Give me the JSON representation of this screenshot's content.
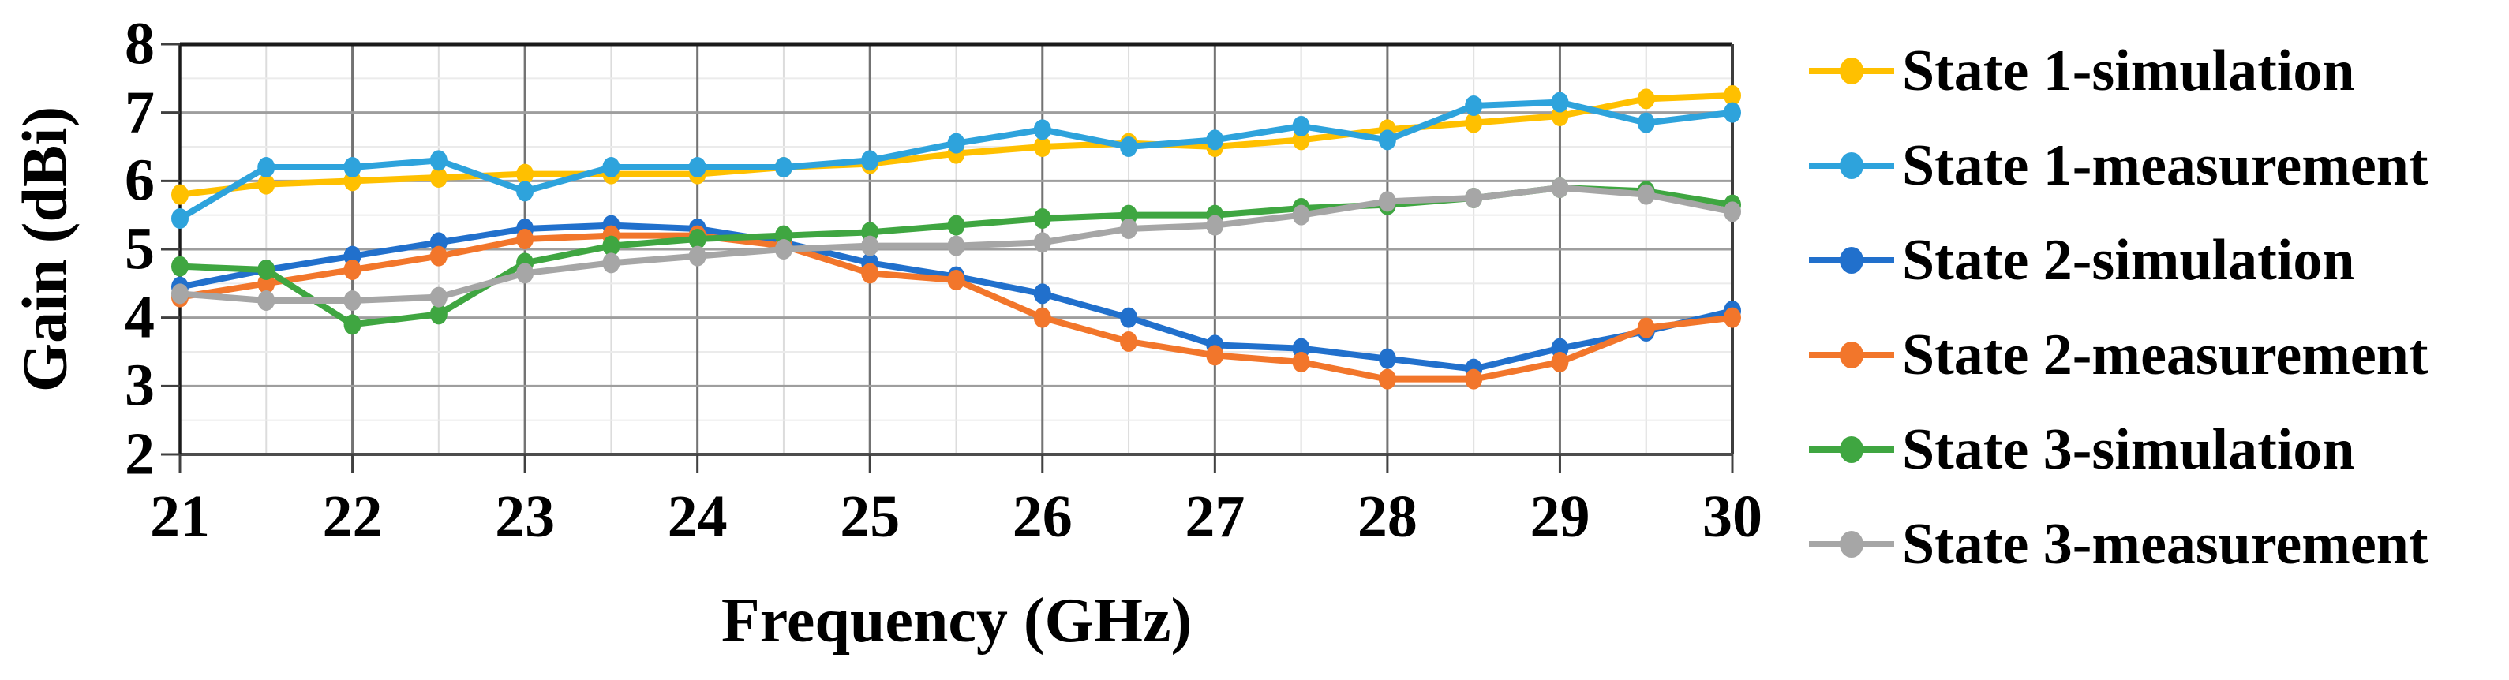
{
  "axes": {
    "x": {
      "title": "Frequency (GHz)",
      "min": 21,
      "max": 30,
      "minor_step": 0.5,
      "tick_labels": [
        "21",
        "22",
        "23",
        "24",
        "25",
        "26",
        "27",
        "28",
        "29",
        "30"
      ]
    },
    "y": {
      "title": "Gain (dBi)",
      "min": 2,
      "max": 8,
      "minor_step": 0.5,
      "tick_labels": [
        "8",
        "7",
        "6",
        "5",
        "4",
        "3",
        "2"
      ]
    }
  },
  "grid": {
    "major_horizontal_color": "#9e9e9e",
    "major_vertical_color": "#737373",
    "minor_horizontal_color": "#ebebeb",
    "minor_vertical_color": "#dcdcdc",
    "frame_top_color": "#1a1a1a",
    "frame_bottom_color": "#4d4d4d",
    "frame_left_color": "#1a1a1a",
    "frame_right_color": "#3d3d3d",
    "tick_color": "#404040"
  },
  "legend": {
    "position": "right"
  },
  "chart_data": {
    "type": "line",
    "title": "",
    "xlabel": "Frequency (GHz)",
    "ylabel": "Gain (dBi)",
    "xlim": [
      21,
      30
    ],
    "ylim": [
      2,
      8
    ],
    "grid": "on",
    "legend_position": "right",
    "x": [
      21,
      21.5,
      22,
      22.5,
      23,
      23.5,
      24,
      24.5,
      25,
      25.5,
      26,
      26.5,
      27,
      27.5,
      28,
      28.5,
      29,
      29.5,
      30
    ],
    "series": [
      {
        "name": "State 1-simulation",
        "color": "#FFC000",
        "values": [
          5.8,
          5.95,
          6.0,
          6.05,
          6.1,
          6.1,
          6.1,
          6.2,
          6.25,
          6.4,
          6.5,
          6.55,
          6.5,
          6.6,
          6.75,
          6.85,
          6.95,
          7.2,
          7.25
        ]
      },
      {
        "name": "State 1-measurement",
        "color": "#2EA3DC",
        "values": [
          5.45,
          6.2,
          6.2,
          6.3,
          5.85,
          6.2,
          6.2,
          6.2,
          6.3,
          6.55,
          6.75,
          6.5,
          6.6,
          6.8,
          6.6,
          7.1,
          7.15,
          6.85,
          7.0
        ]
      },
      {
        "name": "State 2-simulation",
        "color": "#2170CC",
        "values": [
          4.45,
          4.7,
          4.9,
          5.1,
          5.3,
          5.35,
          5.3,
          5.1,
          4.8,
          4.6,
          4.35,
          4.0,
          3.6,
          3.55,
          3.4,
          3.25,
          3.55,
          3.8,
          4.1
        ]
      },
      {
        "name": "State 2-measurement",
        "color": "#F2762B",
        "values": [
          4.3,
          4.5,
          4.7,
          4.9,
          5.15,
          5.2,
          5.2,
          5.05,
          4.65,
          4.55,
          4.0,
          3.65,
          3.45,
          3.35,
          3.1,
          3.1,
          3.35,
          3.85,
          4.0
        ]
      },
      {
        "name": "State 3-simulation",
        "color": "#3FA641",
        "values": [
          4.75,
          4.7,
          3.9,
          4.05,
          4.8,
          5.05,
          5.15,
          5.2,
          5.25,
          5.35,
          5.45,
          5.5,
          5.5,
          5.6,
          5.65,
          5.75,
          5.9,
          5.85,
          5.65
        ]
      },
      {
        "name": "State 3-measurement",
        "color": "#A6A6A6",
        "values": [
          4.35,
          4.25,
          4.25,
          4.3,
          4.65,
          4.8,
          4.9,
          5.0,
          5.05,
          5.05,
          5.1,
          5.3,
          5.35,
          5.5,
          5.7,
          5.75,
          5.9,
          5.8,
          5.55
        ]
      }
    ]
  }
}
